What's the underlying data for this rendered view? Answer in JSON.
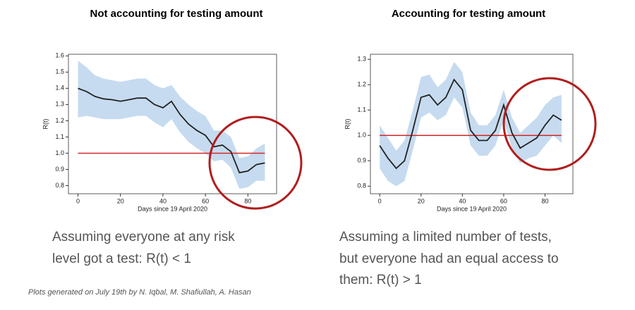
{
  "chart_data": [
    {
      "type": "line",
      "title": "Not accounting for testing amount",
      "xlabel": "Days since 19 April 2020",
      "ylabel": "R(t)",
      "x": [
        0,
        4,
        8,
        12,
        16,
        20,
        24,
        28,
        32,
        36,
        40,
        44,
        48,
        52,
        56,
        60,
        64,
        68,
        72,
        76,
        80,
        84,
        88
      ],
      "line": {
        "color": "#222222",
        "values": [
          1.4,
          1.38,
          1.35,
          1.335,
          1.33,
          1.32,
          1.33,
          1.34,
          1.34,
          1.3,
          1.28,
          1.32,
          1.24,
          1.18,
          1.14,
          1.11,
          1.04,
          1.05,
          1.01,
          0.88,
          0.89,
          0.93,
          0.94
        ]
      },
      "band": {
        "color": "#c6dbef",
        "upper": [
          1.57,
          1.53,
          1.48,
          1.46,
          1.45,
          1.44,
          1.45,
          1.46,
          1.46,
          1.42,
          1.4,
          1.42,
          1.35,
          1.3,
          1.26,
          1.23,
          1.14,
          1.14,
          1.1,
          0.97,
          0.98,
          1.03,
          1.06
        ],
        "lower": [
          1.22,
          1.23,
          1.22,
          1.21,
          1.21,
          1.21,
          1.22,
          1.23,
          1.23,
          1.19,
          1.16,
          1.21,
          1.13,
          1.07,
          1.03,
          1.0,
          0.95,
          0.96,
          0.91,
          0.78,
          0.79,
          0.83,
          0.83
        ]
      },
      "reference": {
        "value": 1,
        "color": "#d62728"
      },
      "xlim": [
        -4.5,
        93.5
      ],
      "xticks": [
        0,
        20,
        40,
        60,
        80
      ],
      "ylim": [
        0.75,
        1.61
      ],
      "yticks": [
        0.8,
        0.9,
        {
          "value": 1,
          "label": "1.0"
        },
        1.1,
        1.2,
        1.3,
        1.4,
        1.5,
        1.6
      ]
    },
    {
      "type": "line",
      "title": "Accounting for testing amount",
      "xlabel": "Days since 19 April 2020",
      "ylabel": "R(t)",
      "x": [
        0,
        4,
        8,
        12,
        16,
        20,
        24,
        28,
        32,
        36,
        40,
        44,
        48,
        52,
        56,
        60,
        64,
        68,
        72,
        76,
        80,
        84,
        88
      ],
      "line": {
        "color": "#222222",
        "values": [
          0.96,
          0.91,
          0.87,
          0.9,
          1.02,
          1.15,
          1.16,
          1.12,
          1.15,
          1.22,
          1.18,
          1.02,
          0.98,
          0.98,
          1.02,
          1.12,
          1.01,
          0.95,
          0.97,
          0.99,
          1.04,
          1.08,
          1.06
        ]
      },
      "band": {
        "color": "#c6dbef",
        "upper": [
          1.04,
          0.99,
          0.94,
          0.98,
          1.1,
          1.23,
          1.24,
          1.19,
          1.22,
          1.29,
          1.25,
          1.09,
          1.04,
          1.04,
          1.08,
          1.18,
          1.07,
          1.01,
          1.04,
          1.07,
          1.12,
          1.15,
          1.16
        ],
        "lower": [
          0.87,
          0.82,
          0.8,
          0.82,
          0.94,
          1.07,
          1.09,
          1.06,
          1.08,
          1.15,
          1.11,
          0.96,
          0.92,
          0.92,
          0.96,
          1.06,
          0.95,
          0.89,
          0.91,
          0.92,
          0.96,
          1.0,
          0.97
        ]
      },
      "reference": {
        "value": 1,
        "color": "#d62728"
      },
      "xlim": [
        -4.5,
        93.5
      ],
      "xticks": [
        0,
        20,
        40,
        60,
        80
      ],
      "ylim": [
        0.77,
        1.32
      ],
      "yticks": [
        0.8,
        0.9,
        {
          "value": 1,
          "label": "1.0"
        },
        1.1,
        1.2,
        1.3
      ]
    }
  ],
  "captions": [
    [
      "Assuming everyone at any risk",
      "level got a test:  R(t) < 1"
    ],
    [
      "Assuming a limited number of tests,",
      "but everyone had an equal access to",
      "them: R(t) > 1"
    ]
  ],
  "footnote": "Plots generated on July 19th by N. Iqbal, M. Shafiullah, A. Hasan"
}
